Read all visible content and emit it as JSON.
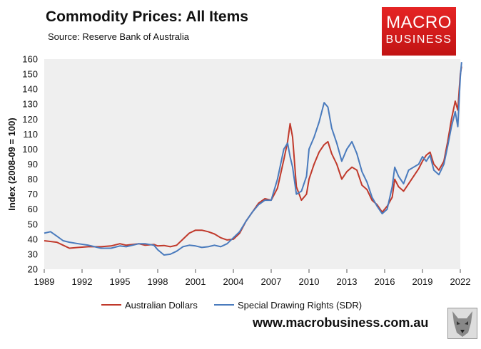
{
  "header": {
    "title": "Commodity Prices: All Items",
    "source": "Source: Reserve Bank of Australia"
  },
  "logo": {
    "line1": "MACRO",
    "line2": "BUSINESS"
  },
  "footer": {
    "url": "www.macrobusiness.com.au"
  },
  "chart_data": {
    "type": "line",
    "title": "Commodity Prices: All Items",
    "xlabel": "",
    "ylabel": "Index (2008-09 = 100)",
    "xlim": [
      1989,
      2022
    ],
    "ylim": [
      20,
      160
    ],
    "x_ticks": [
      "1989",
      "1992",
      "1995",
      "1998",
      "2001",
      "2004",
      "2007",
      "2010",
      "2013",
      "2016",
      "2019",
      "2022"
    ],
    "y_ticks": [
      20,
      30,
      40,
      50,
      60,
      70,
      80,
      90,
      100,
      110,
      120,
      130,
      140,
      150,
      160
    ],
    "grid": false,
    "background": "#efefef",
    "legend_position": "bottom",
    "series": [
      {
        "name": "Australian Dollars",
        "color": "#c0392b",
        "points": [
          [
            1989.0,
            39
          ],
          [
            1990.0,
            38
          ],
          [
            1990.5,
            36
          ],
          [
            1991.0,
            34
          ],
          [
            1991.7,
            34.5
          ],
          [
            1992.5,
            35
          ],
          [
            1993.5,
            35
          ],
          [
            1994.3,
            35.5
          ],
          [
            1995.0,
            37
          ],
          [
            1995.5,
            36
          ],
          [
            1996.0,
            36.5
          ],
          [
            1996.5,
            37
          ],
          [
            1997.0,
            36
          ],
          [
            1997.7,
            36.5
          ],
          [
            1998.0,
            35.5
          ],
          [
            1998.5,
            35.8
          ],
          [
            1999.0,
            35
          ],
          [
            1999.5,
            36
          ],
          [
            2000.0,
            40
          ],
          [
            2000.5,
            44
          ],
          [
            2001.0,
            46
          ],
          [
            2001.5,
            46
          ],
          [
            2002.0,
            45
          ],
          [
            2002.5,
            43.5
          ],
          [
            2003.0,
            41
          ],
          [
            2003.5,
            39.5
          ],
          [
            2004.0,
            40
          ],
          [
            2004.5,
            44
          ],
          [
            2005.0,
            52
          ],
          [
            2005.5,
            58
          ],
          [
            2006.0,
            64
          ],
          [
            2006.5,
            67
          ],
          [
            2007.0,
            66
          ],
          [
            2007.5,
            74
          ],
          [
            2008.0,
            93
          ],
          [
            2008.3,
            105
          ],
          [
            2008.5,
            117
          ],
          [
            2008.7,
            108
          ],
          [
            2009.0,
            75
          ],
          [
            2009.4,
            66
          ],
          [
            2009.8,
            70
          ],
          [
            2010.0,
            80
          ],
          [
            2010.4,
            90
          ],
          [
            2010.8,
            98
          ],
          [
            2011.2,
            103
          ],
          [
            2011.5,
            105
          ],
          [
            2011.8,
            97
          ],
          [
            2012.2,
            90
          ],
          [
            2012.6,
            80
          ],
          [
            2013.0,
            85
          ],
          [
            2013.4,
            88
          ],
          [
            2013.8,
            86
          ],
          [
            2014.2,
            76
          ],
          [
            2014.6,
            73
          ],
          [
            2015.0,
            66
          ],
          [
            2015.4,
            63
          ],
          [
            2015.8,
            58
          ],
          [
            2016.2,
            62
          ],
          [
            2016.6,
            68
          ],
          [
            2016.8,
            80
          ],
          [
            2017.1,
            75
          ],
          [
            2017.5,
            72
          ],
          [
            2017.9,
            77
          ],
          [
            2018.3,
            82
          ],
          [
            2018.7,
            87
          ],
          [
            2019.0,
            92
          ],
          [
            2019.3,
            96
          ],
          [
            2019.6,
            98
          ],
          [
            2019.9,
            90
          ],
          [
            2020.3,
            86
          ],
          [
            2020.7,
            92
          ],
          [
            2021.0,
            105
          ],
          [
            2021.3,
            120
          ],
          [
            2021.6,
            132
          ],
          [
            2021.8,
            126
          ],
          [
            2022.0,
            150
          ],
          [
            2022.1,
            155
          ]
        ]
      },
      {
        "name": "Special Drawing Rights (SDR)",
        "color": "#4a7bbd",
        "points": [
          [
            1989.0,
            44
          ],
          [
            1989.5,
            45
          ],
          [
            1990.0,
            42
          ],
          [
            1990.5,
            39
          ],
          [
            1991.0,
            38
          ],
          [
            1991.7,
            37
          ],
          [
            1992.5,
            36
          ],
          [
            1993.5,
            34
          ],
          [
            1994.3,
            34
          ],
          [
            1995.0,
            35.5
          ],
          [
            1995.5,
            35
          ],
          [
            1996.0,
            36
          ],
          [
            1996.5,
            37
          ],
          [
            1997.0,
            37
          ],
          [
            1997.7,
            36
          ],
          [
            1998.0,
            33
          ],
          [
            1998.5,
            29.5
          ],
          [
            1999.0,
            30
          ],
          [
            1999.5,
            32
          ],
          [
            2000.0,
            35
          ],
          [
            2000.5,
            36
          ],
          [
            2001.0,
            35.5
          ],
          [
            2001.5,
            34.5
          ],
          [
            2002.0,
            35
          ],
          [
            2002.5,
            36
          ],
          [
            2003.0,
            35
          ],
          [
            2003.5,
            37
          ],
          [
            2004.0,
            41
          ],
          [
            2004.5,
            45
          ],
          [
            2005.0,
            52
          ],
          [
            2005.5,
            58
          ],
          [
            2006.0,
            63
          ],
          [
            2006.5,
            66
          ],
          [
            2007.0,
            66
          ],
          [
            2007.5,
            80
          ],
          [
            2008.0,
            100
          ],
          [
            2008.3,
            104
          ],
          [
            2008.5,
            95
          ],
          [
            2008.7,
            88
          ],
          [
            2009.0,
            70
          ],
          [
            2009.4,
            72
          ],
          [
            2009.8,
            82
          ],
          [
            2010.0,
            100
          ],
          [
            2010.4,
            108
          ],
          [
            2010.8,
            118
          ],
          [
            2011.2,
            131
          ],
          [
            2011.5,
            128
          ],
          [
            2011.8,
            114
          ],
          [
            2012.2,
            104
          ],
          [
            2012.6,
            92
          ],
          [
            2013.0,
            100
          ],
          [
            2013.4,
            105
          ],
          [
            2013.8,
            97
          ],
          [
            2014.2,
            85
          ],
          [
            2014.6,
            78
          ],
          [
            2015.0,
            68
          ],
          [
            2015.4,
            62
          ],
          [
            2015.8,
            57
          ],
          [
            2016.2,
            60
          ],
          [
            2016.6,
            75
          ],
          [
            2016.8,
            88
          ],
          [
            2017.1,
            82
          ],
          [
            2017.5,
            77
          ],
          [
            2017.9,
            86
          ],
          [
            2018.3,
            88
          ],
          [
            2018.7,
            90
          ],
          [
            2019.0,
            95
          ],
          [
            2019.3,
            92
          ],
          [
            2019.6,
            96
          ],
          [
            2019.9,
            86
          ],
          [
            2020.3,
            83
          ],
          [
            2020.7,
            90
          ],
          [
            2021.0,
            102
          ],
          [
            2021.3,
            115
          ],
          [
            2021.6,
            125
          ],
          [
            2021.8,
            115
          ],
          [
            2022.0,
            148
          ],
          [
            2022.1,
            158
          ]
        ]
      }
    ]
  }
}
